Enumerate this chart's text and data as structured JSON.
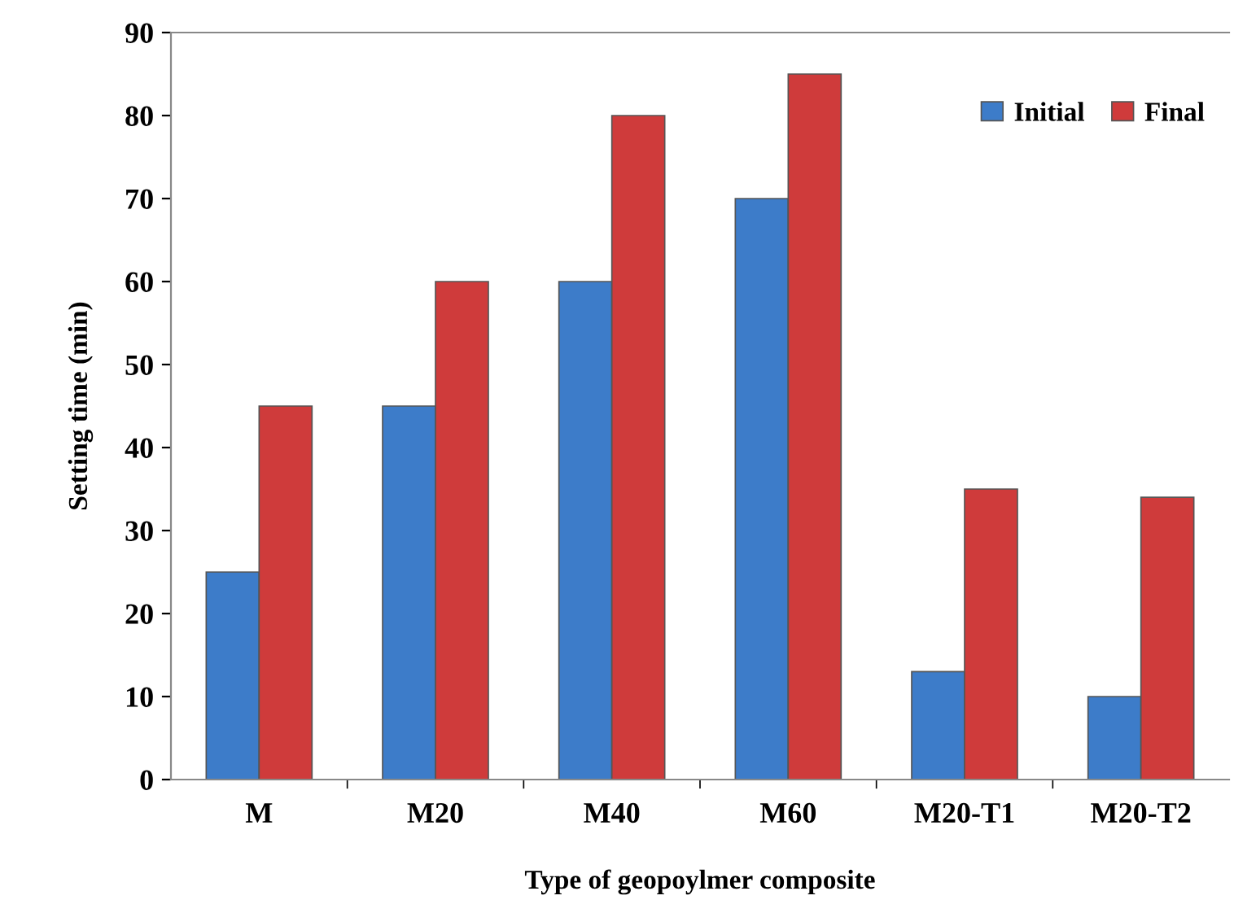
{
  "chart_data": {
    "type": "bar",
    "xlabel": "Type of geopoylmer composite",
    "ylabel": "Setting time (min)",
    "categories": [
      "M",
      "M20",
      "M40",
      "M60",
      "M20-T1",
      "M20-T2"
    ],
    "series": [
      {
        "name": "Initial",
        "color": "#3d7cc9",
        "values": [
          25,
          45,
          60,
          70,
          13,
          10
        ]
      },
      {
        "name": "Final",
        "color": "#cf3b3b",
        "values": [
          45,
          60,
          80,
          85,
          35,
          34
        ]
      }
    ],
    "ylim": [
      0,
      90
    ],
    "yticks": [
      0,
      10,
      20,
      30,
      40,
      50,
      60,
      70,
      80,
      90
    ],
    "grid": false,
    "legend": "top right"
  }
}
